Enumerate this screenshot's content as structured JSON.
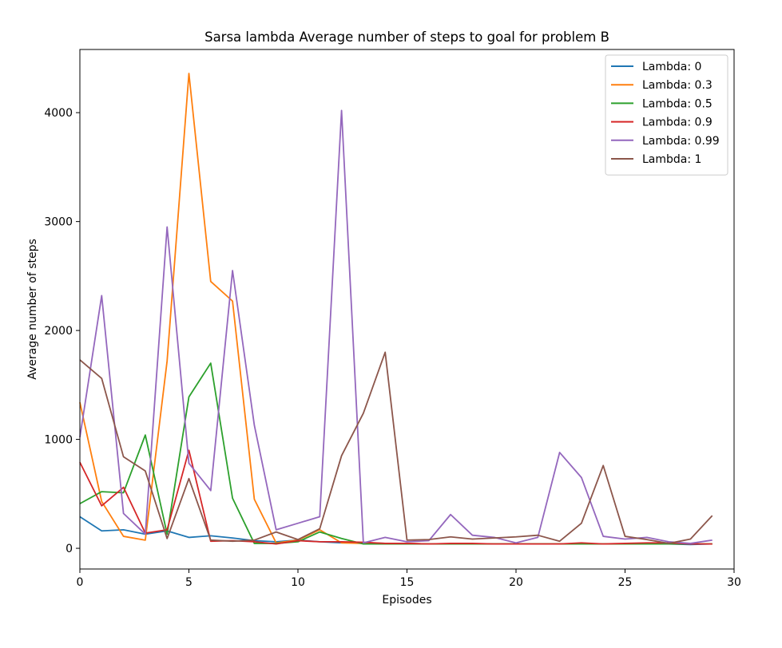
{
  "chart_data": {
    "type": "line",
    "title": "Sarsa lambda Average number of steps to goal for problem B",
    "xlabel": "Episodes",
    "ylabel": "Average number of steps",
    "xlim": [
      0,
      30
    ],
    "ylim": [
      -190,
      4580
    ],
    "xticks": [
      0,
      5,
      10,
      15,
      20,
      25,
      30
    ],
    "yticks": [
      0,
      1000,
      2000,
      3000,
      4000
    ],
    "grid": false,
    "legend_position": "top-right",
    "x": [
      0,
      1,
      2,
      3,
      4,
      5,
      6,
      7,
      8,
      9,
      10,
      11,
      12,
      13,
      14,
      15,
      16,
      17,
      18,
      19,
      20,
      21,
      22,
      23,
      24,
      25,
      26,
      27,
      28,
      29
    ],
    "series": [
      {
        "name": "Lambda: 0",
        "color": "#1f77b4",
        "values": [
          290,
          160,
          170,
          130,
          160,
          100,
          115,
          95,
          70,
          60,
          75,
          60,
          50,
          50,
          45,
          45,
          40,
          40,
          40,
          40,
          40,
          40,
          40,
          40,
          40,
          40,
          40,
          40,
          35,
          40
        ]
      },
      {
        "name": "Lambda: 0.3",
        "color": "#ff7f0e",
        "values": [
          1340,
          430,
          110,
          75,
          1720,
          4360,
          2450,
          2270,
          450,
          50,
          75,
          170,
          50,
          45,
          40,
          45,
          40,
          40,
          40,
          40,
          40,
          40,
          40,
          40,
          40,
          40,
          40,
          40,
          40,
          40
        ]
      },
      {
        "name": "Lambda: 0.5",
        "color": "#2ca02c",
        "values": [
          410,
          520,
          510,
          1040,
          130,
          1390,
          1700,
          460,
          45,
          45,
          60,
          150,
          90,
          40,
          40,
          40,
          40,
          40,
          40,
          40,
          40,
          40,
          40,
          40,
          40,
          40,
          40,
          40,
          40,
          40
        ]
      },
      {
        "name": "Lambda: 0.9",
        "color": "#d62728",
        "values": [
          790,
          390,
          560,
          140,
          170,
          900,
          65,
          70,
          60,
          40,
          70,
          60,
          60,
          55,
          45,
          45,
          40,
          45,
          45,
          40,
          40,
          40,
          40,
          50,
          40,
          45,
          50,
          50,
          40,
          40
        ]
      },
      {
        "name": "Lambda: 0.99",
        "color": "#9467bd",
        "values": [
          1020,
          2320,
          320,
          130,
          2950,
          780,
          530,
          2550,
          1130,
          170,
          230,
          290,
          4020,
          50,
          100,
          60,
          70,
          310,
          120,
          100,
          50,
          100,
          880,
          650,
          110,
          85,
          100,
          60,
          45,
          75
        ]
      },
      {
        "name": "Lambda: 1",
        "color": "#8c564b",
        "values": [
          1730,
          1560,
          840,
          710,
          90,
          640,
          75,
          65,
          75,
          150,
          80,
          180,
          850,
          1240,
          1800,
          75,
          80,
          105,
          85,
          95,
          105,
          120,
          65,
          230,
          760,
          110,
          80,
          45,
          85,
          300
        ]
      }
    ]
  }
}
